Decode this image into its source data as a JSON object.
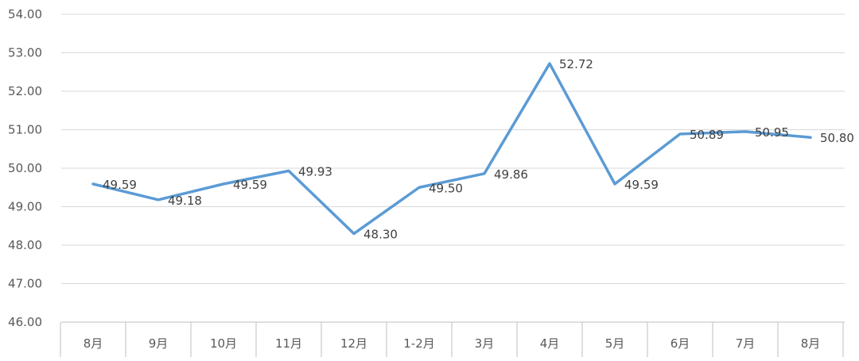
{
  "chart_data": {
    "type": "line",
    "title": "",
    "xlabel": "",
    "ylabel": "",
    "categories": [
      "8月",
      "9月",
      "10月",
      "11月",
      "12月",
      "1-2月",
      "3月",
      "4月",
      "5月",
      "6月",
      "7月",
      "8月"
    ],
    "series": [
      {
        "values": [
          49.59,
          49.18,
          49.59,
          49.93,
          48.3,
          49.5,
          49.86,
          52.72,
          49.59,
          50.89,
          50.95,
          50.8
        ],
        "labels": [
          "49.59",
          "49.18",
          "49.59",
          "49.93",
          "48.30",
          "49.50",
          "49.86",
          "52.72",
          "49.59",
          "50.89",
          "50.95",
          "50.80"
        ],
        "color": "#5b9bd5"
      }
    ],
    "ylim": [
      46,
      54
    ],
    "yticks": [
      "46.00",
      "47.00",
      "48.00",
      "49.00",
      "50.00",
      "51.00",
      "52.00",
      "53.00",
      "54.00"
    ],
    "grid": true,
    "legend": "none"
  }
}
